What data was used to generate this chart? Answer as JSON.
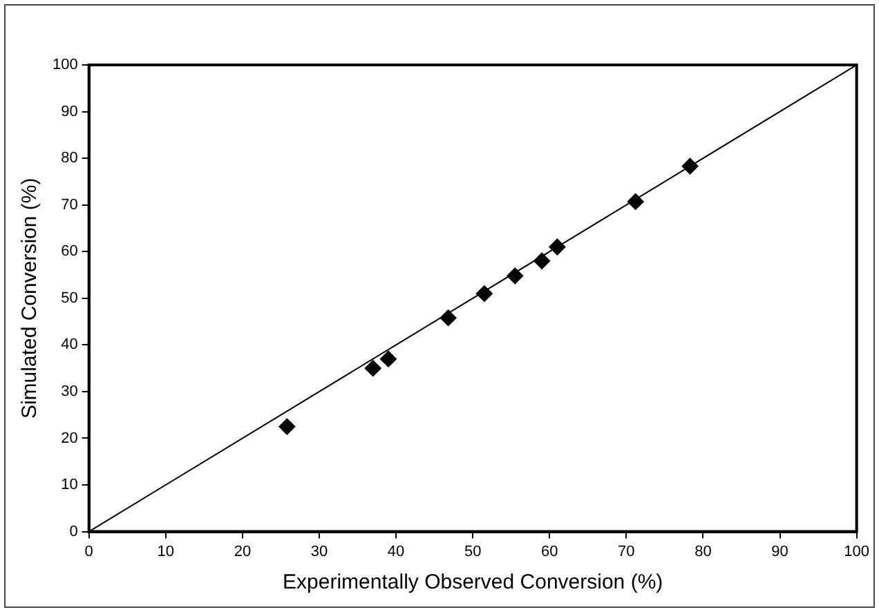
{
  "chart_data": {
    "type": "scatter",
    "xlabel": "Experimentally Observed Conversion (%)",
    "ylabel": "Simulated Conversion (%)",
    "xlim": [
      0,
      100
    ],
    "ylim": [
      0,
      100
    ],
    "xticks": [
      0,
      10,
      20,
      30,
      40,
      50,
      60,
      70,
      80,
      90,
      100
    ],
    "yticks": [
      0,
      10,
      20,
      30,
      40,
      50,
      60,
      70,
      80,
      90,
      100
    ],
    "grid": false,
    "legend": false,
    "marker": "diamond",
    "series": [
      {
        "color": "#000000",
        "x": [
          25.8,
          37,
          39,
          46.8,
          51.5,
          55.5,
          59,
          61,
          71.2,
          78.3
        ],
        "values": [
          22.5,
          35,
          37,
          45.8,
          51,
          54.8,
          58,
          61,
          70.7,
          78.3
        ]
      },
      {
        "type": "line",
        "color": "#000000",
        "marker": "none",
        "x": [
          0,
          100
        ],
        "values": [
          0,
          100
        ]
      }
    ]
  }
}
